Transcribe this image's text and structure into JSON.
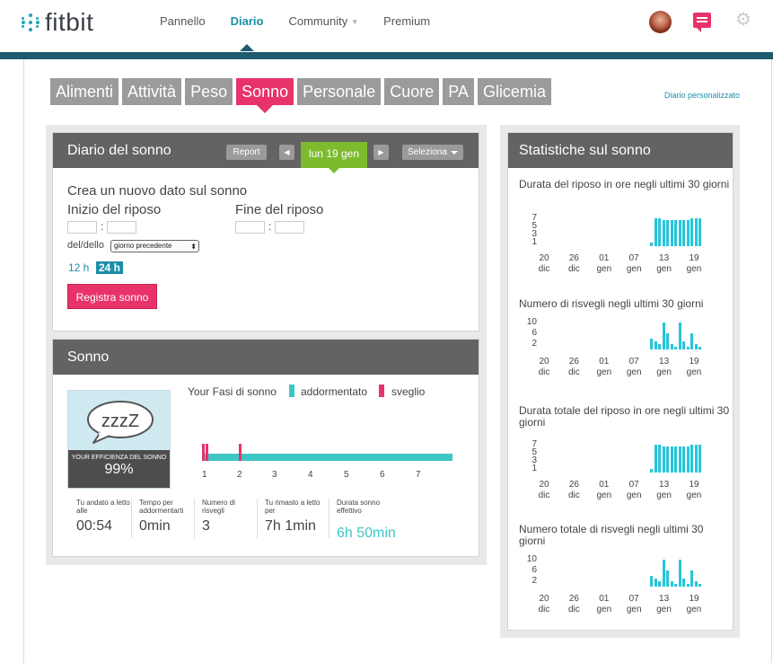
{
  "header": {
    "logo_text": "fitbit",
    "nav": [
      {
        "label": "Pannello",
        "active": false
      },
      {
        "label": "Diario",
        "active": true
      },
      {
        "label": "Community",
        "active": false
      },
      {
        "label": "Premium",
        "active": false
      }
    ],
    "icons": [
      "avatar",
      "messages-icon",
      "gear-icon"
    ],
    "colors": {
      "brand": "#1a8fa8",
      "bar": "#1f5a6f",
      "accent": "#e8336a",
      "green": "#7dbb2e",
      "teal": "#3ec6c6"
    }
  },
  "tabs": [
    "Alimenti",
    "Attività",
    "Peso",
    "Sonno",
    "Personale",
    "Cuore",
    "PA",
    "Glicemia"
  ],
  "active_tab": "Sonno",
  "custom_diary_link": "Diario personalizzato",
  "sleep_log": {
    "title": "Diario del sonno",
    "report_label": "Report",
    "date": "lun 19 gen",
    "select_label": "Seleziona",
    "create_title": "Crea un nuovo dato sul sonno",
    "start_label": "Inizio del riposo",
    "end_label": "Fine del riposo",
    "day_label": "del/dello",
    "day_select_value": "giorno precedente",
    "h12": "12 h",
    "h24": "24 h",
    "register_label": "Registra sonno"
  },
  "sleep": {
    "title": "Sonno",
    "bubble_text": "zzzZ",
    "efficiency_label": "YOUR EFFICIENZA DEL SONNO",
    "efficiency_value": "99%",
    "phases_title": "Your Fasi di sonno",
    "legend_asleep": "addormentato",
    "legend_awake": "sveglio",
    "hours": [
      "1",
      "2",
      "3",
      "4",
      "5",
      "6",
      "7"
    ],
    "stats": [
      {
        "label": "Tu andato a letto alle",
        "value": "00:54"
      },
      {
        "label": "Tempo per addormentarti",
        "value": "0min"
      },
      {
        "label": "Numero di risvegli",
        "value": "3"
      },
      {
        "label": "Tu rimasto a letto per",
        "value": "7h 1min"
      },
      {
        "label": "Durata sonno effettivo",
        "value": "6h 50min"
      }
    ]
  },
  "statistics": {
    "title": "Statistiche sul sonno",
    "x_labels": [
      [
        "20",
        "dic"
      ],
      [
        "26",
        "dic"
      ],
      [
        "01",
        "gen"
      ],
      [
        "07",
        "gen"
      ],
      [
        "13",
        "gen"
      ],
      [
        "19",
        "gen"
      ]
    ]
  },
  "chart_data": [
    {
      "type": "bar",
      "title": "Durata del riposo in ore negli ultimi 30 giorni",
      "yticks": [
        "7",
        "5",
        "3",
        "1"
      ],
      "ylim": [
        0,
        8
      ],
      "values": [
        1,
        7,
        7,
        6.5,
        6.5,
        6.5,
        6.5,
        6.5,
        6.5,
        6.5,
        7,
        7,
        7
      ]
    },
    {
      "type": "bar",
      "title": "Numero di risvegli negli ultimi 30 giorni",
      "yticks": [
        "10",
        "6",
        "2"
      ],
      "ylim": [
        0,
        12
      ],
      "values": [
        4,
        3,
        2,
        10,
        6,
        2,
        1,
        10,
        3,
        1,
        6,
        2,
        1
      ]
    },
    {
      "type": "bar",
      "title": "Durata totale del riposo in ore negli ultimi 30 giorni",
      "yticks": [
        "7",
        "5",
        "3",
        "1"
      ],
      "ylim": [
        0,
        8
      ],
      "values": [
        1,
        7,
        7,
        6.5,
        6.5,
        6.5,
        6.5,
        6.5,
        6.5,
        6.5,
        7,
        7,
        7
      ]
    },
    {
      "type": "bar",
      "title": "Numero totale di risvegli negli ultimi 30 giorni",
      "yticks": [
        "10",
        "6",
        "2"
      ],
      "ylim": [
        0,
        12
      ],
      "values": [
        4,
        3,
        2,
        10,
        6,
        2,
        1,
        10,
        3,
        1,
        6,
        2,
        1
      ]
    }
  ]
}
